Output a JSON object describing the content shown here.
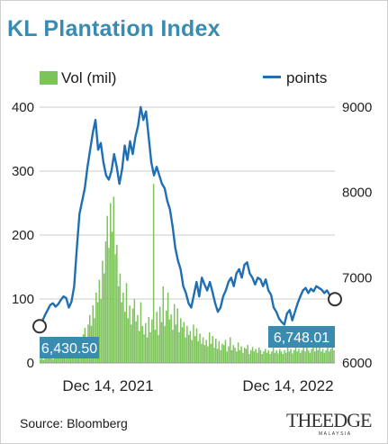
{
  "title": "KL Plantation Index",
  "legend": {
    "bars_label": "Vol (mil)",
    "line_label": "points"
  },
  "source": "Source: Bloomberg",
  "logo": {
    "text": "THEEDGE",
    "subtext": "MALAYSIA"
  },
  "colors": {
    "title": "#3a8bb0",
    "bars": "#7cc35a",
    "line": "#1f6fb2",
    "callout": "#3a8bb0",
    "grid": "#cccccc"
  },
  "chart_data": {
    "type": "bar+line",
    "x_ticks": [
      "Dec 14, 2021",
      "Dec 14, 2022"
    ],
    "y_left": {
      "label": "Vol (mil)",
      "ticks": [
        0,
        100,
        200,
        300,
        400
      ],
      "lim": [
        0,
        400
      ]
    },
    "y_right": {
      "label": "points",
      "ticks": [
        6000,
        7000,
        8000,
        9000
      ],
      "lim": [
        6000,
        9000
      ]
    },
    "grid": "horizontal",
    "annotations": [
      {
        "text": "6,430.50",
        "value": 6430.5,
        "position": "start"
      },
      {
        "text": "6,748.01",
        "value": 6748.01,
        "position": "end"
      }
    ],
    "points_series": {
      "name": "points",
      "values": [
        6430.5,
        6490,
        6560,
        6620,
        6680,
        6700,
        6660,
        6690,
        6740,
        6780,
        6760,
        6650,
        6720,
        6900,
        7350,
        7750,
        7900,
        8050,
        8300,
        8500,
        8700,
        8850,
        8500,
        8580,
        8350,
        8200,
        8150,
        8250,
        8450,
        8300,
        8100,
        8270,
        8550,
        8380,
        8600,
        8450,
        8650,
        8780,
        9000,
        8850,
        8950,
        8650,
        8350,
        8200,
        8300,
        8200,
        8100,
        8050,
        7900,
        7800,
        7600,
        7350,
        7200,
        7100,
        6900,
        6820,
        6700,
        6650,
        6800,
        6950,
        6780,
        7000,
        6920,
        6850,
        6950,
        6830,
        6700,
        6600,
        6650,
        6780,
        6850,
        6950,
        7000,
        6900,
        7050,
        7100,
        7000,
        7150,
        7180,
        7050,
        7000,
        6920,
        7000,
        6980,
        6900,
        6980,
        6850,
        6800,
        6650,
        6600,
        6520,
        6480,
        6450,
        6580,
        6620,
        6500,
        6600,
        6700,
        6780,
        6850,
        6880,
        6820,
        6870,
        6840,
        6900,
        6880,
        6860,
        6820,
        6850,
        6800,
        6790,
        6748.01
      ]
    },
    "volume_series": {
      "name": "Vol (mil)",
      "values": [
        6,
        10,
        5,
        8,
        12,
        7,
        9,
        11,
        6,
        14,
        9,
        12,
        8,
        15,
        10,
        20,
        12,
        18,
        25,
        14,
        22,
        18,
        30,
        24,
        35,
        40,
        28,
        45,
        55,
        38,
        60,
        75,
        58,
        90,
        70,
        110,
        95,
        130,
        100,
        160,
        140,
        190,
        230,
        180,
        250,
        205,
        260,
        170,
        185,
        120,
        140,
        95,
        110,
        80,
        125,
        70,
        90,
        60,
        85,
        100,
        65,
        75,
        50,
        95,
        58,
        45,
        62,
        40,
        72,
        48,
        68,
        280,
        52,
        80,
        44,
        88,
        64,
        120,
        58,
        82,
        110,
        68,
        76,
        52,
        92,
        60,
        85,
        48,
        70,
        56,
        64,
        40,
        58,
        44,
        50,
        36,
        60,
        42,
        54,
        34,
        46,
        30,
        40,
        28,
        36,
        26,
        48,
        30,
        42,
        24,
        38,
        22,
        34,
        20,
        30,
        28,
        36,
        18,
        26,
        40,
        20,
        28,
        24,
        18,
        32,
        20,
        26,
        16,
        24,
        22,
        28,
        14,
        20,
        25,
        18,
        22,
        16,
        24,
        20,
        14,
        18,
        22,
        16,
        20,
        14,
        18,
        24,
        16,
        20,
        15,
        22,
        18,
        14,
        20,
        16,
        24,
        18,
        22,
        15,
        20,
        26,
        18,
        22,
        16,
        20,
        28,
        18,
        24,
        20,
        16,
        22,
        26,
        18,
        30,
        20,
        24,
        18,
        22,
        16,
        20,
        24,
        18,
        22,
        26,
        20
      ]
    }
  }
}
